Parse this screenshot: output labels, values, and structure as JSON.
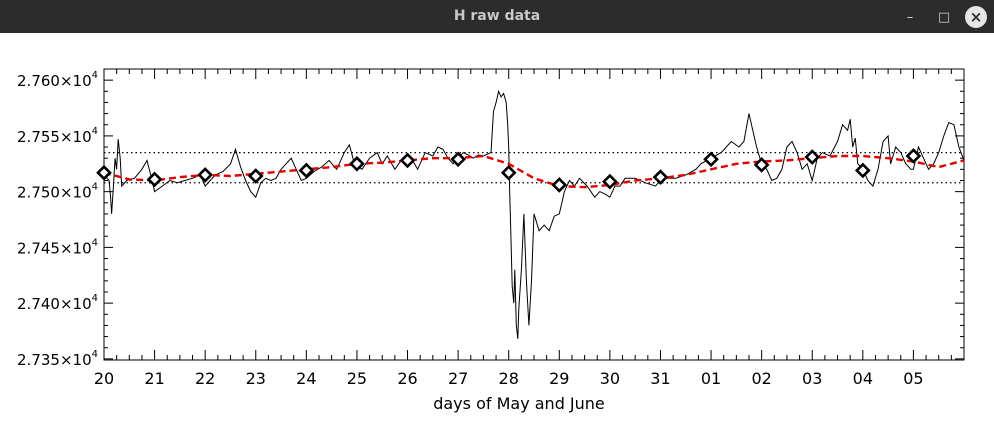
{
  "window": {
    "title": "H raw data",
    "minimize_glyph": "–",
    "maximize_glyph": "□",
    "close_glyph": "×"
  },
  "chart_data": {
    "type": "line",
    "title": "",
    "xlabel": "days of May and June",
    "ylabel": "",
    "x_tick_labels": [
      "20",
      "21",
      "22",
      "23",
      "24",
      "25",
      "26",
      "27",
      "28",
      "29",
      "30",
      "31",
      "01",
      "02",
      "03",
      "04",
      "05"
    ],
    "xlim": [
      0,
      17
    ],
    "ylim": [
      27349,
      27610
    ],
    "y_ticks": [
      {
        "value": 27350,
        "mantissa": "2.735",
        "exp": "4"
      },
      {
        "value": 27400,
        "mantissa": "2.740",
        "exp": "4"
      },
      {
        "value": 27450,
        "mantissa": "2.745",
        "exp": "4"
      },
      {
        "value": 27500,
        "mantissa": "2.750",
        "exp": "4"
      },
      {
        "value": 27550,
        "mantissa": "2.755",
        "exp": "4"
      },
      {
        "value": 27600,
        "mantissa": "2.760",
        "exp": "4"
      }
    ],
    "times_sign": "×",
    "grid": false,
    "reference_lines": [
      27508,
      27535
    ],
    "colors": {
      "raw": "#000000",
      "trend": "#e00000",
      "markers": "#000000"
    },
    "raw_series": {
      "name": "",
      "points": [
        [
          0.0,
          27515
        ],
        [
          0.1,
          27510
        ],
        [
          0.13,
          27495
        ],
        [
          0.15,
          27480
        ],
        [
          0.18,
          27500
        ],
        [
          0.22,
          27530
        ],
        [
          0.25,
          27520
        ],
        [
          0.28,
          27547
        ],
        [
          0.32,
          27530
        ],
        [
          0.35,
          27505
        ],
        [
          0.45,
          27510
        ],
        [
          0.6,
          27512
        ],
        [
          0.75,
          27520
        ],
        [
          0.85,
          27528
        ],
        [
          0.95,
          27510
        ],
        [
          1.0,
          27500
        ],
        [
          1.15,
          27505
        ],
        [
          1.3,
          27510
        ],
        [
          1.45,
          27508
        ],
        [
          1.6,
          27510
        ],
        [
          1.75,
          27512
        ],
        [
          1.9,
          27515
        ],
        [
          2.0,
          27505
        ],
        [
          2.1,
          27510
        ],
        [
          2.2,
          27515
        ],
        [
          2.35,
          27518
        ],
        [
          2.5,
          27525
        ],
        [
          2.6,
          27538
        ],
        [
          2.7,
          27522
        ],
        [
          2.8,
          27510
        ],
        [
          2.9,
          27500
        ],
        [
          3.0,
          27495
        ],
        [
          3.1,
          27508
        ],
        [
          3.2,
          27512
        ],
        [
          3.3,
          27510
        ],
        [
          3.4,
          27512
        ],
        [
          3.5,
          27520
        ],
        [
          3.6,
          27525
        ],
        [
          3.7,
          27530
        ],
        [
          3.8,
          27520
        ],
        [
          3.9,
          27510
        ],
        [
          4.0,
          27512
        ],
        [
          4.15,
          27518
        ],
        [
          4.3,
          27522
        ],
        [
          4.45,
          27528
        ],
        [
          4.6,
          27520
        ],
        [
          4.75,
          27535
        ],
        [
          4.85,
          27542
        ],
        [
          4.95,
          27525
        ],
        [
          5.1,
          27520
        ],
        [
          5.25,
          27530
        ],
        [
          5.4,
          27535
        ],
        [
          5.5,
          27525
        ],
        [
          5.6,
          27532
        ],
        [
          5.75,
          27520
        ],
        [
          5.9,
          27530
        ],
        [
          6.0,
          27530
        ],
        [
          6.1,
          27528
        ],
        [
          6.2,
          27520
        ],
        [
          6.35,
          27535
        ],
        [
          6.5,
          27532
        ],
        [
          6.6,
          27540
        ],
        [
          6.7,
          27538
        ],
        [
          6.8,
          27530
        ],
        [
          6.9,
          27525
        ],
        [
          7.0,
          27530
        ],
        [
          7.1,
          27535
        ],
        [
          7.2,
          27533
        ],
        [
          7.3,
          27530
        ],
        [
          7.4,
          27533
        ],
        [
          7.5,
          27532
        ],
        [
          7.65,
          27535
        ],
        [
          7.7,
          27572
        ],
        [
          7.75,
          27580
        ],
        [
          7.8,
          27590
        ],
        [
          7.85,
          27585
        ],
        [
          7.9,
          27588
        ],
        [
          7.95,
          27580
        ],
        [
          7.98,
          27560
        ],
        [
          8.0,
          27540
        ],
        [
          8.02,
          27500
        ],
        [
          8.05,
          27450
        ],
        [
          8.07,
          27415
        ],
        [
          8.1,
          27400
        ],
        [
          8.12,
          27430
        ],
        [
          8.15,
          27380
        ],
        [
          8.18,
          27368
        ],
        [
          8.2,
          27395
        ],
        [
          8.25,
          27430
        ],
        [
          8.3,
          27480
        ],
        [
          8.35,
          27420
        ],
        [
          8.4,
          27380
        ],
        [
          8.45,
          27420
        ],
        [
          8.5,
          27480
        ],
        [
          8.6,
          27465
        ],
        [
          8.7,
          27470
        ],
        [
          8.8,
          27465
        ],
        [
          8.9,
          27478
        ],
        [
          9.0,
          27480
        ],
        [
          9.1,
          27500
        ],
        [
          9.2,
          27510
        ],
        [
          9.3,
          27505
        ],
        [
          9.4,
          27512
        ],
        [
          9.55,
          27505
        ],
        [
          9.7,
          27495
        ],
        [
          9.8,
          27500
        ],
        [
          9.9,
          27498
        ],
        [
          10.0,
          27495
        ],
        [
          10.1,
          27505
        ],
        [
          10.2,
          27505
        ],
        [
          10.3,
          27512
        ],
        [
          10.5,
          27512
        ],
        [
          10.7,
          27508
        ],
        [
          10.9,
          27505
        ],
        [
          11.0,
          27510
        ],
        [
          11.1,
          27512
        ],
        [
          11.3,
          27512
        ],
        [
          11.5,
          27515
        ],
        [
          11.7,
          27520
        ],
        [
          11.8,
          27525
        ],
        [
          12.0,
          27530
        ],
        [
          12.2,
          27535
        ],
        [
          12.4,
          27545
        ],
        [
          12.55,
          27540
        ],
        [
          12.65,
          27545
        ],
        [
          12.7,
          27558
        ],
        [
          12.75,
          27570
        ],
        [
          12.8,
          27560
        ],
        [
          12.9,
          27540
        ],
        [
          13.0,
          27525
        ],
        [
          13.1,
          27520
        ],
        [
          13.2,
          27510
        ],
        [
          13.3,
          27512
        ],
        [
          13.4,
          27520
        ],
        [
          13.5,
          27540
        ],
        [
          13.6,
          27545
        ],
        [
          13.7,
          27535
        ],
        [
          13.8,
          27520
        ],
        [
          13.9,
          27525
        ],
        [
          14.0,
          27510
        ],
        [
          14.1,
          27530
        ],
        [
          14.2,
          27535
        ],
        [
          14.35,
          27532
        ],
        [
          14.5,
          27545
        ],
        [
          14.6,
          27560
        ],
        [
          14.7,
          27555
        ],
        [
          14.75,
          27565
        ],
        [
          14.8,
          27540
        ],
        [
          14.85,
          27548
        ],
        [
          14.9,
          27525
        ],
        [
          15.0,
          27520
        ],
        [
          15.1,
          27510
        ],
        [
          15.2,
          27505
        ],
        [
          15.3,
          27520
        ],
        [
          15.4,
          27545
        ],
        [
          15.5,
          27550
        ],
        [
          15.55,
          27525
        ],
        [
          15.65,
          27540
        ],
        [
          15.75,
          27535
        ],
        [
          15.85,
          27525
        ],
        [
          15.95,
          27520
        ],
        [
          16.0,
          27520
        ],
        [
          16.1,
          27540
        ],
        [
          16.2,
          27530
        ],
        [
          16.3,
          27520
        ],
        [
          16.4,
          27525
        ],
        [
          16.5,
          27535
        ],
        [
          16.6,
          27550
        ],
        [
          16.7,
          27562
        ],
        [
          16.8,
          27560
        ],
        [
          16.9,
          27540
        ],
        [
          17.0,
          27528
        ]
      ]
    },
    "trend_series": {
      "name": "",
      "points": [
        [
          0.0,
          27517
        ],
        [
          0.5,
          27511
        ],
        [
          1.0,
          27510
        ],
        [
          1.5,
          27513
        ],
        [
          2.0,
          27515
        ],
        [
          2.5,
          27514
        ],
        [
          3.0,
          27516
        ],
        [
          3.5,
          27518
        ],
        [
          4.0,
          27520
        ],
        [
          4.5,
          27522
        ],
        [
          5.0,
          27525
        ],
        [
          5.5,
          27526
        ],
        [
          6.0,
          27528
        ],
        [
          6.5,
          27530
        ],
        [
          7.0,
          27530
        ],
        [
          7.5,
          27532
        ],
        [
          8.0,
          27525
        ],
        [
          8.5,
          27512
        ],
        [
          9.0,
          27505
        ],
        [
          9.5,
          27504
        ],
        [
          10.0,
          27506
        ],
        [
          10.5,
          27510
        ],
        [
          11.0,
          27512
        ],
        [
          11.5,
          27515
        ],
        [
          12.0,
          27520
        ],
        [
          12.5,
          27525
        ],
        [
          13.0,
          27527
        ],
        [
          13.5,
          27528
        ],
        [
          14.0,
          27530
        ],
        [
          14.5,
          27532
        ],
        [
          15.0,
          27532
        ],
        [
          15.5,
          27530
        ],
        [
          16.0,
          27527
        ],
        [
          16.5,
          27522
        ],
        [
          17.0,
          27528
        ]
      ]
    },
    "daily_mean_markers": [
      [
        0,
        27517
      ],
      [
        1,
        27511
      ],
      [
        2,
        27515
      ],
      [
        3,
        27514
      ],
      [
        4,
        27519
      ],
      [
        5,
        27525
      ],
      [
        6,
        27528
      ],
      [
        7,
        27529
      ],
      [
        8,
        27517
      ],
      [
        9,
        27506
      ],
      [
        10,
        27509
      ],
      [
        11,
        27513
      ],
      [
        12,
        27529
      ],
      [
        13,
        27524
      ],
      [
        14,
        27531
      ],
      [
        15,
        27519
      ],
      [
        16,
        27532
      ]
    ]
  }
}
